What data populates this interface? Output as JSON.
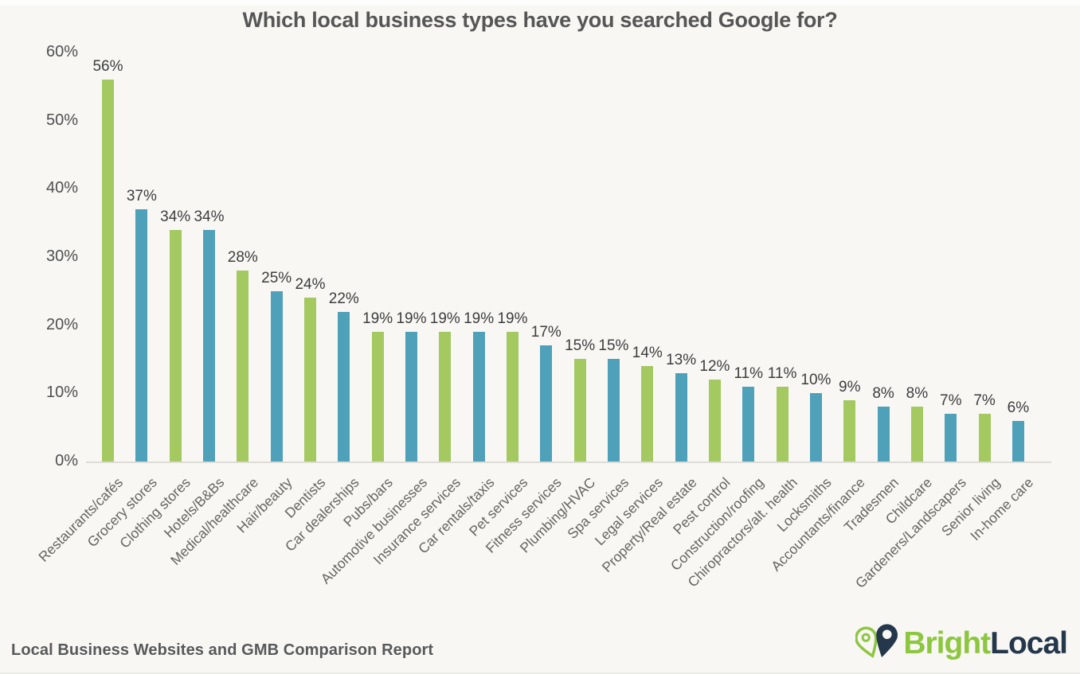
{
  "title": "Which local business types have you searched Google for?",
  "footer": {
    "report_label": "Local Business Websites and GMB Comparison Report",
    "brand": {
      "part1": "Bright",
      "part2": "Local"
    }
  },
  "colors": {
    "bar_green": "#a3c960",
    "bar_blue": "#4fa0b9",
    "background": "#f8f7f4",
    "title_text": "#565656",
    "value_label_text": "#3d3d3d",
    "axis_tick_text": "#4f4f4f",
    "category_text": "#666460",
    "baseline": "#dedcd7",
    "brand_green": "#8dc63f",
    "brand_navy": "#24374b"
  },
  "chart_data": {
    "type": "bar",
    "title": "Which local business types have you searched Google for?",
    "xlabel": "",
    "ylabel": "",
    "ylim": [
      0,
      60
    ],
    "yticks": [
      0,
      10,
      20,
      30,
      40,
      50,
      60
    ],
    "ytick_suffix": "%",
    "grid": false,
    "legend": false,
    "data_label_suffix": "%",
    "bar_color_pattern": [
      "#a3c960",
      "#4fa0b9"
    ],
    "categories": [
      "Restaurants/cafés",
      "Grocery stores",
      "Clothing stores",
      "Hotels/B&Bs",
      "Medical/healthcare",
      "Hair/beauty",
      "Dentists",
      "Car dealerships",
      "Pubs/bars",
      "Automotive businesses",
      "Insurance services",
      "Car rentals/taxis",
      "Pet services",
      "Fitness services",
      "Plumbing/HVAC",
      "Spa services",
      "Legal services",
      "Property/Real estate",
      "Pest control",
      "Construction/roofing",
      "Chiropractors/alt. health",
      "Locksmiths",
      "Accountants/finance",
      "Tradesmen",
      "Childcare",
      "Gardeners/Landscapers",
      "Senior living",
      "In-home care"
    ],
    "values": [
      56,
      37,
      34,
      34,
      28,
      25,
      24,
      22,
      19,
      19,
      19,
      19,
      19,
      17,
      15,
      15,
      14,
      13,
      12,
      11,
      11,
      10,
      9,
      8,
      8,
      7,
      7,
      6
    ]
  }
}
